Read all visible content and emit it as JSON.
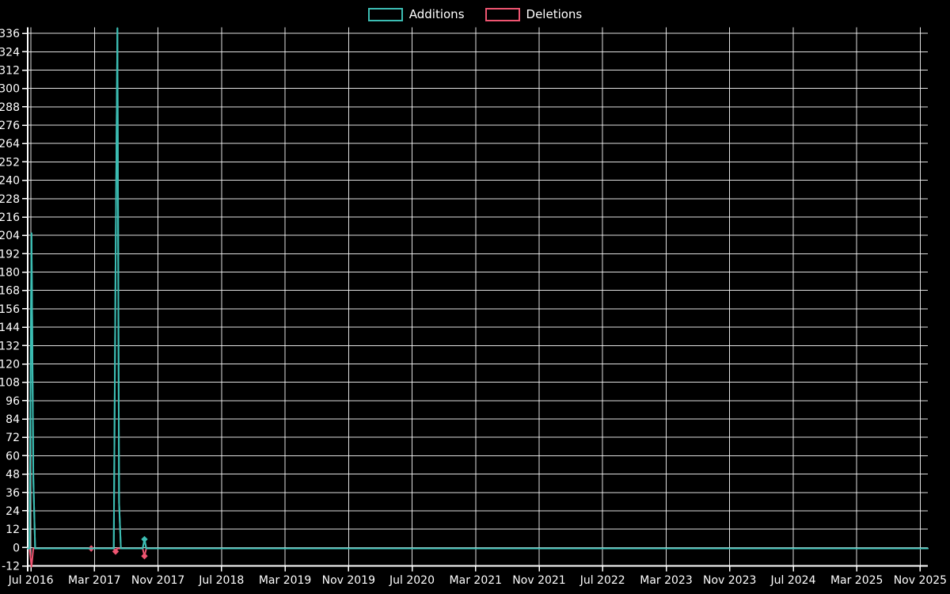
{
  "legend": {
    "items": [
      {
        "label": "Additions",
        "color": "#3cbdb3"
      },
      {
        "label": "Deletions",
        "color": "#ef5571"
      }
    ]
  },
  "chart_data": {
    "type": "line",
    "title": "",
    "background": "#000000",
    "grid": true,
    "legend_position": "top-center",
    "axis_color": "#ffffff",
    "x_axis": {
      "kind": "date",
      "range": [
        "2016-06-19",
        "2025-11-30"
      ],
      "tick_interval_months": 8,
      "tick_labels": [
        "Jul 2016",
        "Mar 2017",
        "Nov 2017",
        "Jul 2018",
        "Mar 2019",
        "Nov 2019",
        "Jul 2020",
        "Mar 2021",
        "Nov 2021",
        "Jul 2022",
        "Mar 2023",
        "Nov 2023",
        "Jul 2024",
        "Mar 2025",
        "Nov 2025"
      ]
    },
    "y_axis": {
      "min": -12,
      "max": 340,
      "dtick": 12,
      "tick_labels": [
        "336",
        "324",
        "312",
        "300",
        "288",
        "276",
        "264",
        "252",
        "240",
        "228",
        "216",
        "204",
        "192",
        "180",
        "168",
        "156",
        "144",
        "132",
        "120",
        "108",
        "96",
        "84",
        "72",
        "60",
        "48",
        "36",
        "24",
        "12",
        "0",
        "-12"
      ]
    },
    "series": [
      {
        "name": "Additions",
        "color": "#3cbdb3",
        "points": [
          [
            "2016-06-19",
            0
          ],
          [
            "2016-06-26",
            0
          ],
          [
            "2016-07-03",
            206
          ],
          [
            "2016-07-10",
            46
          ],
          [
            "2016-07-17",
            0
          ],
          [
            "2017-02-19",
            0
          ],
          [
            "2017-05-14",
            0
          ],
          [
            "2017-05-21",
            186
          ],
          [
            "2017-05-28",
            340
          ],
          [
            "2017-06-04",
            30
          ],
          [
            "2017-06-11",
            0
          ],
          [
            "2017-09-03",
            0
          ],
          [
            "2017-09-10",
            6
          ],
          [
            "2017-09-17",
            0
          ],
          [
            "2025-11-30",
            0
          ]
        ],
        "visible_markers": [
          [
            "2017-09-10",
            6
          ]
        ]
      },
      {
        "name": "Deletions",
        "color": "#ef5571",
        "points": [
          [
            "2016-06-19",
            0
          ],
          [
            "2016-06-26",
            0
          ],
          [
            "2016-07-03",
            -12
          ],
          [
            "2016-07-10",
            0
          ],
          [
            "2017-02-19",
            0
          ],
          [
            "2017-05-14",
            0
          ],
          [
            "2017-05-21",
            -2
          ],
          [
            "2017-05-28",
            0
          ],
          [
            "2017-09-03",
            0
          ],
          [
            "2017-09-10",
            -5
          ],
          [
            "2017-09-17",
            0
          ],
          [
            "2025-11-30",
            0
          ]
        ],
        "visible_markers": [
          [
            "2017-02-19",
            0
          ],
          [
            "2017-05-21",
            -2
          ],
          [
            "2017-09-10",
            -5
          ]
        ]
      }
    ]
  }
}
